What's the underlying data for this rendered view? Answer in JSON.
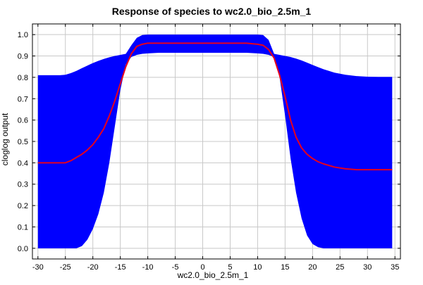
{
  "chart_data": {
    "type": "area",
    "title": "Response of species to wc2.0_bio_2.5m_1",
    "xlabel": "wc2.0_bio_2.5m_1",
    "ylabel": "cloglog output",
    "xlim": [
      -31,
      36
    ],
    "ylim": [
      -0.05,
      1.05
    ],
    "xticks": [
      -30,
      -25,
      -20,
      -15,
      -10,
      -5,
      0,
      5,
      10,
      15,
      20,
      25,
      30,
      35
    ],
    "yticks": [
      0.0,
      0.1,
      0.2,
      0.3,
      0.4,
      0.5,
      0.6,
      0.7,
      0.8,
      0.9,
      1.0
    ],
    "ytick_labels": [
      "0.0",
      "0.1",
      "0.2",
      "0.3",
      "0.4",
      "0.5",
      "0.6",
      "0.7",
      "0.8",
      "0.9",
      "1.0"
    ],
    "grid": true,
    "colors": {
      "band": "#0000ff",
      "line": "#e8001c",
      "grid": "#c8c8c8"
    },
    "series": [
      {
        "role": "mean",
        "x": [
          -30,
          -28,
          -26,
          -25,
          -24,
          -23,
          -22,
          -21,
          -20,
          -19,
          -18,
          -17,
          -16,
          -15,
          -14,
          -13,
          -12,
          -11,
          -10,
          -8,
          -5,
          0,
          5,
          8,
          10,
          11,
          12,
          13,
          14,
          15,
          16,
          17,
          18,
          19,
          20,
          21,
          22,
          24,
          26,
          28,
          30,
          32,
          34.5
        ],
        "y": [
          0.4,
          0.4,
          0.4,
          0.4,
          0.41,
          0.425,
          0.44,
          0.46,
          0.485,
          0.52,
          0.56,
          0.62,
          0.69,
          0.77,
          0.85,
          0.91,
          0.945,
          0.955,
          0.96,
          0.96,
          0.96,
          0.96,
          0.96,
          0.96,
          0.955,
          0.95,
          0.93,
          0.89,
          0.81,
          0.71,
          0.6,
          0.52,
          0.47,
          0.44,
          0.42,
          0.405,
          0.395,
          0.38,
          0.372,
          0.368,
          0.368,
          0.368,
          0.368
        ]
      },
      {
        "role": "upper",
        "x": [
          -30,
          -28,
          -26,
          -25,
          -24,
          -23,
          -22,
          -21,
          -20,
          -19,
          -18,
          -17,
          -16,
          -15,
          -14,
          -13,
          -12,
          -11,
          -10,
          -8,
          -5,
          0,
          5,
          8,
          10,
          11,
          12,
          13,
          14,
          15,
          16,
          17,
          18,
          19,
          20,
          21,
          22,
          24,
          26,
          28,
          30,
          32,
          34.5
        ],
        "y": [
          0.81,
          0.81,
          0.81,
          0.812,
          0.82,
          0.83,
          0.843,
          0.855,
          0.867,
          0.877,
          0.886,
          0.894,
          0.9,
          0.905,
          0.91,
          0.95,
          0.985,
          0.998,
          1.0,
          1.0,
          1.0,
          1.0,
          1.0,
          1.0,
          1.0,
          0.998,
          0.975,
          0.91,
          0.905,
          0.9,
          0.895,
          0.888,
          0.879,
          0.869,
          0.858,
          0.848,
          0.838,
          0.822,
          0.812,
          0.806,
          0.803,
          0.802,
          0.802
        ]
      },
      {
        "role": "lower",
        "x": [
          -30,
          -28,
          -26,
          -25,
          -24,
          -23,
          -22,
          -21,
          -20,
          -19,
          -18,
          -17,
          -16,
          -15,
          -14,
          -13,
          -12,
          -11,
          -10,
          -8,
          -5,
          0,
          5,
          8,
          10,
          11,
          12,
          13,
          14,
          15,
          16,
          17,
          18,
          19,
          20,
          21,
          22,
          24,
          26,
          28,
          30,
          32,
          34.5
        ],
        "y": [
          0.0,
          0.0,
          0.0,
          0.0,
          0.0,
          0.0,
          0.01,
          0.04,
          0.09,
          0.16,
          0.26,
          0.4,
          0.57,
          0.74,
          0.86,
          0.895,
          0.905,
          0.91,
          0.912,
          0.915,
          0.915,
          0.915,
          0.915,
          0.915,
          0.912,
          0.91,
          0.905,
          0.895,
          0.8,
          0.62,
          0.42,
          0.26,
          0.14,
          0.06,
          0.02,
          0.005,
          0.0,
          0.0,
          0.0,
          0.0,
          0.0,
          0.0,
          0.0
        ]
      }
    ]
  }
}
